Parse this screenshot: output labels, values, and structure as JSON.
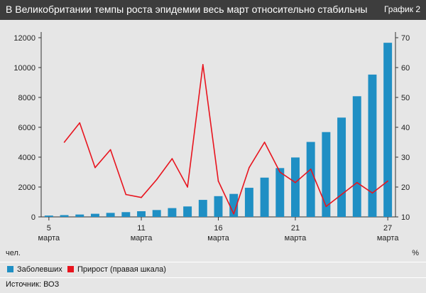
{
  "header": {
    "title": "В Великобритании темпы роста эпидемии весь март относительно стабильны",
    "graph_label": "График 2"
  },
  "legend": {
    "items": [
      {
        "label": "Заболевших",
        "color": "#1f8fc4"
      },
      {
        "label": "Прирост (правая шкала)",
        "color": "#e8141e"
      }
    ]
  },
  "source": "Источник: ВОЗ",
  "chart_data": {
    "type": "bar+line",
    "title": "В Великобритании темпы роста эпидемии весь март относительно стабильны",
    "x": [
      5,
      6,
      7,
      8,
      9,
      10,
      11,
      12,
      13,
      14,
      15,
      16,
      17,
      18,
      19,
      20,
      21,
      22,
      23,
      24,
      25,
      26,
      27
    ],
    "x_ticks": [
      {
        "day": 5,
        "num": "5",
        "month": "марта"
      },
      {
        "day": 11,
        "num": "11",
        "month": "марта"
      },
      {
        "day": 16,
        "num": "16",
        "month": "марта"
      },
      {
        "day": 21,
        "num": "21",
        "month": "марта"
      },
      {
        "day": 27,
        "num": "27",
        "month": "марта"
      }
    ],
    "left_axis": {
      "unit": "чел.",
      "ylim": [
        0,
        12000
      ],
      "ticks": [
        0,
        2000,
        4000,
        6000,
        8000,
        10000,
        12000
      ]
    },
    "right_axis": {
      "unit": "%",
      "ylim": [
        10,
        70
      ],
      "ticks": [
        10,
        20,
        30,
        40,
        50,
        60,
        70
      ]
    },
    "series": [
      {
        "name": "Заболевших",
        "kind": "bar",
        "axis": "left",
        "color": "#1f8fc4",
        "values": [
          90,
          120,
          160,
          210,
          270,
          320,
          380,
          460,
          590,
          700,
          1140,
          1390,
          1540,
          1950,
          2630,
          3270,
          3980,
          5020,
          5680,
          6650,
          8080,
          9530,
          11660
        ]
      },
      {
        "name": "Прирост (правая шкала)",
        "kind": "line",
        "axis": "right",
        "color": "#e8141e",
        "values": [
          null,
          35,
          41.5,
          26.5,
          32.5,
          17.5,
          16.5,
          22.5,
          29.5,
          20,
          61,
          22,
          11,
          26.5,
          35,
          25,
          21.5,
          26,
          13.5,
          17.5,
          21.5,
          18,
          22
        ]
      }
    ]
  }
}
